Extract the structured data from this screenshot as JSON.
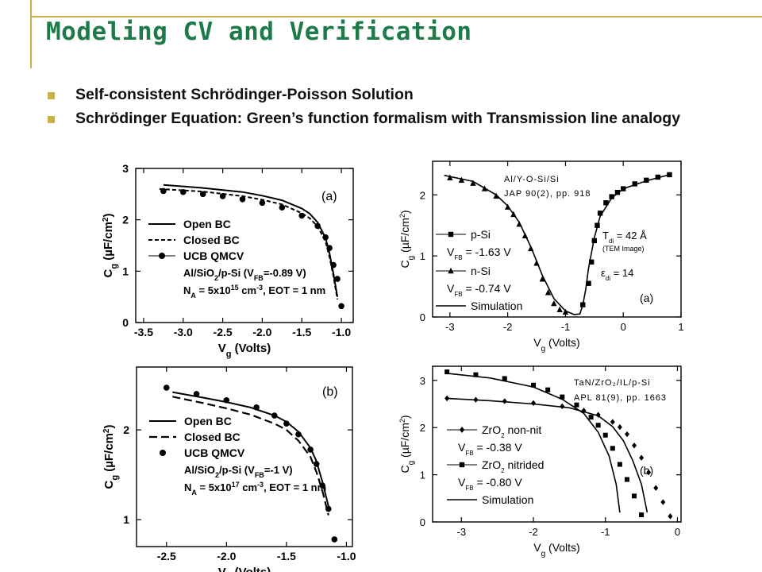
{
  "slide": {
    "title": "Modeling CV and Verification",
    "bullets": [
      "Self-consistent Schrödinger-Poisson Solution",
      "Schrödinger Equation: Green’s function formalism with Transmission line analogy"
    ]
  },
  "colors": {
    "title": "#1f7a4a",
    "accent": "#c8b14a"
  },
  "chart_data": [
    {
      "type": "line",
      "panel": "(a)",
      "xlabel": "Vg (Volts)",
      "ylabel": "Cg (µF/cm²)",
      "xlim": [
        -3.6,
        -0.85
      ],
      "ylim": [
        0,
        3
      ],
      "xticks": [
        -3.5,
        -3.0,
        -2.5,
        -2.0,
        -1.5,
        -1.0
      ],
      "xtick_labels": [
        "-3.5",
        "-3.0",
        "-2.5",
        "-2.0",
        "-1.5",
        "-1.0"
      ],
      "yticks": [
        0,
        1,
        2,
        3
      ],
      "ytick_labels": [
        "0",
        "1",
        "2",
        "3"
      ],
      "legend": [
        "Open BC",
        "Closed BC",
        "UCB QMCV"
      ],
      "annotation": [
        "Al/SiO₂/p-Si (V_FB=-0.89 V)",
        "N_A = 5x10¹⁵ cm⁻³, EOT = 1 nm"
      ],
      "series": [
        {
          "name": "Open BC",
          "x": [
            -3.25,
            -2.75,
            -2.25,
            -2.0,
            -1.75,
            -1.5,
            -1.4,
            -1.3,
            -1.2,
            -1.15,
            -1.1,
            -1.05
          ],
          "y": [
            2.68,
            2.62,
            2.54,
            2.47,
            2.38,
            2.22,
            2.12,
            1.95,
            1.65,
            1.35,
            0.95,
            0.5
          ]
        },
        {
          "name": "Closed BC",
          "x": [
            -3.3,
            -2.75,
            -2.25,
            -2.0,
            -1.75,
            -1.5,
            -1.4,
            -1.3,
            -1.2,
            -1.15,
            -1.1,
            -1.05
          ],
          "y": [
            2.6,
            2.55,
            2.46,
            2.39,
            2.3,
            2.13,
            2.03,
            1.87,
            1.58,
            1.28,
            0.9,
            0.45
          ]
        },
        {
          "name": "UCB QMCV",
          "x": [
            -3.25,
            -3.0,
            -2.75,
            -2.5,
            -2.25,
            -2.0,
            -1.75,
            -1.5,
            -1.3,
            -1.2,
            -1.15,
            -1.1,
            -1.05,
            -1.0
          ],
          "y": [
            2.56,
            2.54,
            2.5,
            2.46,
            2.4,
            2.33,
            2.24,
            2.08,
            1.88,
            1.66,
            1.45,
            1.12,
            0.85,
            0.32
          ]
        }
      ]
    },
    {
      "type": "line",
      "panel": "(b)",
      "xlabel": "Vg (Volts)",
      "ylabel": "Cg (µF/cm²)",
      "xlim": [
        -2.75,
        -0.95
      ],
      "ylim": [
        0.7,
        2.7
      ],
      "xticks": [
        -2.5,
        -2.0,
        -1.5,
        -1.0
      ],
      "xtick_labels": [
        "-2.5",
        "-2.0",
        "-1.5",
        "-1.0"
      ],
      "yticks": [
        1,
        2
      ],
      "ytick_labels": [
        "1",
        "2"
      ],
      "legend": [
        "Open BC",
        "Closed BC",
        "UCB QMCV"
      ],
      "annotation": [
        "Al/SiO₂/p-Si (V_FB=-1 V)",
        "N_A = 5x10¹⁷ cm⁻³, EOT = 1 nm"
      ],
      "series": [
        {
          "name": "Open BC",
          "x": [
            -2.45,
            -2.2,
            -2.0,
            -1.8,
            -1.6,
            -1.5,
            -1.4,
            -1.3,
            -1.25,
            -1.2,
            -1.15
          ],
          "y": [
            2.42,
            2.36,
            2.31,
            2.25,
            2.16,
            2.09,
            1.98,
            1.8,
            1.65,
            1.42,
            1.15
          ]
        },
        {
          "name": "Closed BC",
          "x": [
            -2.45,
            -2.2,
            -2.0,
            -1.8,
            -1.6,
            -1.5,
            -1.4,
            -1.3,
            -1.25,
            -1.2,
            -1.15
          ],
          "y": [
            2.37,
            2.3,
            2.24,
            2.17,
            2.07,
            2.0,
            1.88,
            1.7,
            1.53,
            1.32,
            1.05
          ]
        },
        {
          "name": "UCB QMCV",
          "x": [
            -2.5,
            -2.25,
            -2.0,
            -1.75,
            -1.6,
            -1.5,
            -1.4,
            -1.3,
            -1.25,
            -1.2,
            -1.15,
            -1.1
          ],
          "y": [
            2.47,
            2.4,
            2.33,
            2.25,
            2.16,
            2.07,
            1.95,
            1.78,
            1.62,
            1.38,
            1.12,
            0.78
          ]
        }
      ]
    },
    {
      "type": "scatter",
      "panel": "(a)",
      "xlabel": "Vg (Volts)",
      "ylabel": "Cg (µF/cm²)",
      "xlim": [
        -3.3,
        1.0
      ],
      "ylim": [
        0,
        2.55
      ],
      "xticks": [
        -3,
        -2,
        -1,
        0,
        1
      ],
      "xtick_labels": [
        "-3",
        "-2",
        "-1",
        "0",
        "1"
      ],
      "yticks": [
        0,
        1,
        2
      ],
      "ytick_labels": [
        "0",
        "1",
        "2"
      ],
      "header": [
        "Al/Y-O-Si/Si",
        "JAP 90(2), pp. 918"
      ],
      "legend": [
        "p-Si",
        "V_FB = -1.63 V",
        "n-Si",
        "V_FB = -0.74 V",
        "Simulation"
      ],
      "annotation": [
        "T_di = 42 Å",
        "(TEM Image)",
        "ε_di = 14"
      ],
      "series": [
        {
          "name": "p-Si",
          "x": [
            -0.7,
            -0.6,
            -0.55,
            -0.5,
            -0.45,
            -0.4,
            -0.3,
            -0.2,
            -0.1,
            0.0,
            0.2,
            0.4,
            0.6,
            0.8
          ],
          "y": [
            0.2,
            0.55,
            0.9,
            1.25,
            1.5,
            1.7,
            1.87,
            1.97,
            2.04,
            2.1,
            2.18,
            2.24,
            2.29,
            2.33
          ]
        },
        {
          "name": "n-Si",
          "x": [
            -3.0,
            -2.8,
            -2.6,
            -2.4,
            -2.2,
            -2.0,
            -1.9,
            -1.8,
            -1.7,
            -1.6,
            -1.5,
            -1.4,
            -1.3,
            -1.2,
            -1.1,
            -1.0
          ],
          "y": [
            2.28,
            2.24,
            2.19,
            2.1,
            1.98,
            1.8,
            1.68,
            1.52,
            1.33,
            1.12,
            0.88,
            0.62,
            0.4,
            0.22,
            0.12,
            0.08
          ]
        },
        {
          "name": "Simulation",
          "x": [
            -3.1,
            -2.6,
            -2.2,
            -2.0,
            -1.8,
            -1.6,
            -1.4,
            -1.2,
            -1.0,
            -0.85,
            -0.75,
            -0.7,
            -0.65,
            -0.6,
            -0.5,
            -0.4,
            -0.2,
            0.0,
            0.4,
            0.8
          ],
          "y": [
            2.32,
            2.22,
            2.0,
            1.82,
            1.55,
            1.15,
            0.68,
            0.3,
            0.1,
            0.04,
            0.05,
            0.2,
            0.45,
            0.8,
            1.3,
            1.65,
            1.95,
            2.1,
            2.23,
            2.33
          ]
        }
      ]
    },
    {
      "type": "scatter",
      "panel": "(b)",
      "xlabel": "Vg (Volts)",
      "ylabel": "Cg (µF/cm²)",
      "xlim": [
        -3.4,
        0.05
      ],
      "ylim": [
        0,
        3.3
      ],
      "xticks": [
        -3,
        -2,
        -1,
        0
      ],
      "xtick_labels": [
        "-3",
        "-2",
        "-1",
        "0"
      ],
      "yticks": [
        0,
        1,
        2,
        3
      ],
      "ytick_labels": [
        "0",
        "1",
        "2",
        "3"
      ],
      "header": [
        "TaN/ZrO₂/IL/p-Si",
        "APL 81(9), pp. 1663"
      ],
      "legend": [
        "ZrO₂ non-nit",
        "V_FB = -0.38 V",
        "ZrO₂ nitrided",
        "V_FB = -0.80 V",
        "Simulation"
      ],
      "series": [
        {
          "name": "ZrO₂ non-nit",
          "x": [
            -3.2,
            -2.8,
            -2.4,
            -2.0,
            -1.6,
            -1.3,
            -1.1,
            -0.9,
            -0.8,
            -0.7,
            -0.6,
            -0.5,
            -0.4,
            -0.3,
            -0.2,
            -0.1
          ],
          "y": [
            2.62,
            2.59,
            2.56,
            2.52,
            2.45,
            2.36,
            2.27,
            2.12,
            2.01,
            1.86,
            1.62,
            1.36,
            1.05,
            0.72,
            0.42,
            0.12
          ]
        },
        {
          "name": "ZrO₂ nitrided",
          "x": [
            -3.2,
            -2.8,
            -2.4,
            -2.0,
            -1.8,
            -1.6,
            -1.4,
            -1.2,
            -1.1,
            -1.0,
            -0.9,
            -0.8,
            -0.7,
            -0.6,
            -0.5
          ],
          "y": [
            3.18,
            3.12,
            3.04,
            2.9,
            2.8,
            2.65,
            2.48,
            2.22,
            2.05,
            1.84,
            1.56,
            1.22,
            0.9,
            0.55,
            0.15
          ]
        },
        {
          "name": "Simulation",
          "x": [
            -3.2,
            -2.6,
            -2.0,
            -1.6,
            -1.3,
            -1.1,
            -0.95,
            -0.85,
            -0.8
          ],
          "y": [
            3.15,
            3.05,
            2.86,
            2.6,
            2.3,
            1.9,
            1.4,
            0.8,
            0.2
          ]
        },
        {
          "name": "Simulation",
          "x": [
            -3.2,
            -2.6,
            -2.0,
            -1.5,
            -1.1,
            -0.9,
            -0.75,
            -0.62,
            -0.5,
            -0.42
          ],
          "y": [
            2.62,
            2.57,
            2.5,
            2.42,
            2.25,
            2.02,
            1.72,
            1.3,
            0.8,
            0.2
          ]
        }
      ]
    }
  ]
}
